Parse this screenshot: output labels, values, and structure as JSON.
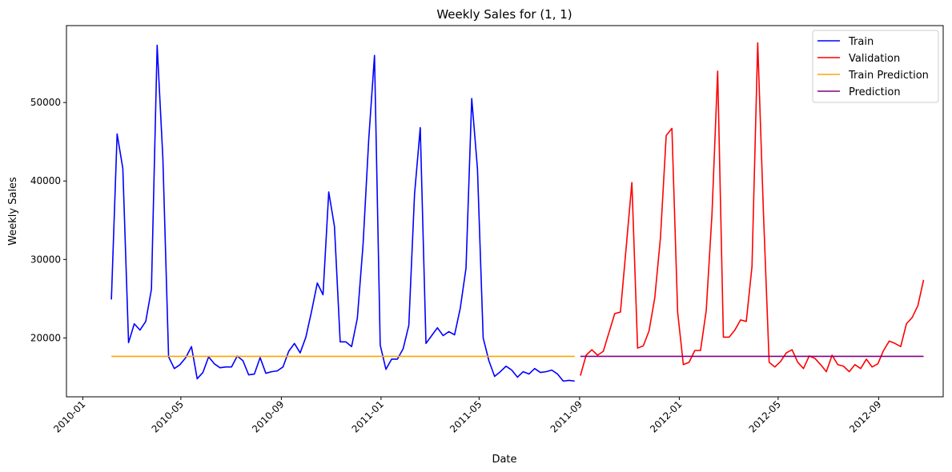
{
  "chart_data": {
    "type": "line",
    "title": "Weekly Sales for (1, 1)",
    "xlabel": "Date",
    "ylabel": "Weekly Sales",
    "x_axis_type": "date",
    "xlim": [
      "2009-12-12",
      "2012-11-19"
    ],
    "ylim": [
      12500,
      59800
    ],
    "x_ticks": [
      "2010-01",
      "2010-05",
      "2010-09",
      "2011-01",
      "2011-05",
      "2011-09",
      "2012-01",
      "2012-05",
      "2012-09"
    ],
    "x_tick_dates": [
      "2010-01-01",
      "2010-05-01",
      "2010-09-01",
      "2011-01-01",
      "2011-05-01",
      "2011-09-01",
      "2012-01-01",
      "2012-05-01",
      "2012-09-01"
    ],
    "y_ticks": [
      20000,
      30000,
      40000,
      50000
    ],
    "y_tick_labels": [
      "20000",
      "30000",
      "40000",
      "50000"
    ],
    "x_tick_rotation": 45,
    "grid": false,
    "legend_position": "top-right",
    "legend": [
      "Train",
      "Validation",
      "Train Prediction",
      "Prediction"
    ],
    "series": [
      {
        "name": "Train",
        "color": "#0000ff",
        "start_date": "2010-02-05",
        "step_days": 7,
        "values": [
          24900,
          46000,
          41600,
          19400,
          21800,
          21000,
          22100,
          26200,
          57300,
          42900,
          17600,
          16100,
          16600,
          17500,
          18900,
          14800,
          15600,
          17600,
          16700,
          16200,
          16300,
          16300,
          17700,
          17100,
          15300,
          15400,
          17500,
          15500,
          15700,
          15800,
          16300,
          18300,
          19300,
          18100,
          20100,
          23400,
          27000,
          25500,
          38600,
          34200,
          19500,
          19500,
          18900,
          22500,
          31900,
          45400,
          56000,
          19100,
          16000,
          17300,
          17300,
          18600,
          21600,
          38300,
          46800,
          19300,
          20300,
          21300,
          20300,
          20800,
          20400,
          23800,
          28900,
          50500,
          41600,
          20000,
          17100,
          15100,
          15700,
          16400,
          15900,
          15000,
          15700,
          15400,
          16100,
          15600,
          15700,
          15900,
          15400,
          14500,
          14600,
          14500
        ]
      },
      {
        "name": "Validation",
        "color": "#ff0000",
        "start_date": "2011-09-02",
        "step_days": 7,
        "values": [
          15200,
          17800,
          18500,
          17800,
          18300,
          20700,
          23100,
          23300,
          31500,
          39800,
          18700,
          19000,
          20900,
          25100,
          32800,
          45800,
          46700,
          23300,
          16600,
          16900,
          18400,
          18400,
          23500,
          35700,
          54000,
          20100,
          20100,
          21000,
          22300,
          22100,
          29100,
          57600,
          36000,
          16900,
          16300,
          17000,
          18100,
          18500,
          16900,
          16100,
          17700,
          17400,
          16600,
          15700,
          17800,
          16600,
          16400,
          15700,
          16600,
          16100,
          17300,
          16300,
          16700,
          18400,
          19600,
          19300,
          18900,
          21800,
          22600,
          24100,
          27400
        ]
      },
      {
        "name": "Train Prediction",
        "color": "#ffa500",
        "start_date": "2010-02-05",
        "end_date": "2011-08-26",
        "constant_value": 17650
      },
      {
        "name": "Prediction",
        "color": "#800080",
        "start_date": "2011-09-02",
        "end_date": "2012-10-26",
        "constant_value": 17650
      }
    ]
  }
}
